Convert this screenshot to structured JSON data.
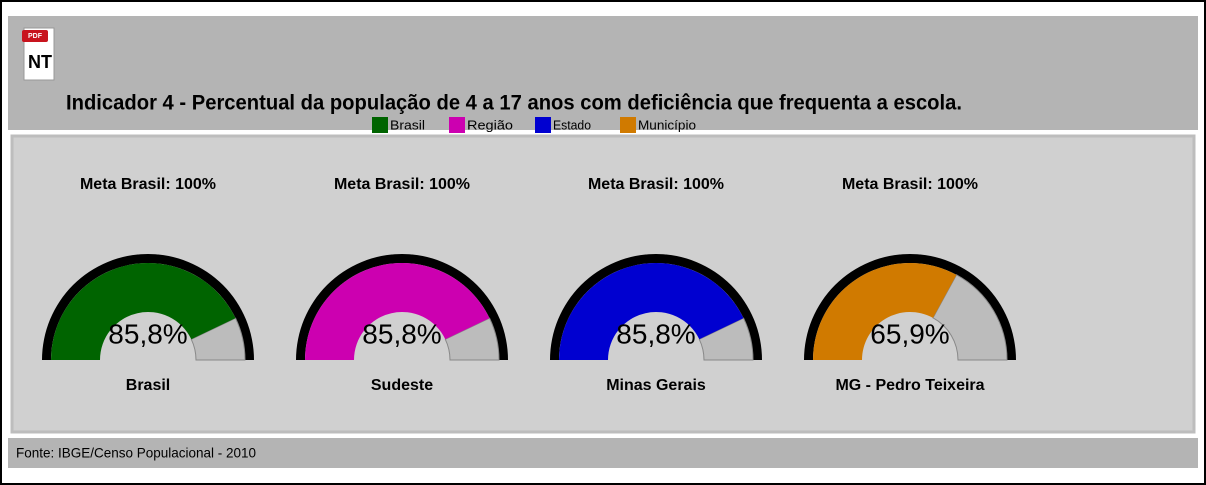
{
  "header": {
    "icon_badge": "PDF",
    "icon_label": "NT",
    "title": "Indicador 4 - Percentual da população de 4 a 17 anos com deficiência que frequenta a escola."
  },
  "chart_data": [
    {
      "type": "gauge",
      "title": "Meta Brasil: 100%",
      "label": "Brasil",
      "ylim": [
        0,
        100
      ],
      "series": [
        {
          "name": "Brasil",
          "color": "#006400",
          "values": [
            85.8
          ],
          "value_labels": [
            "85,8%"
          ]
        }
      ]
    },
    {
      "type": "gauge",
      "title": "Meta Brasil: 100%",
      "label": "Sudeste",
      "ylim": [
        0,
        100
      ],
      "series": [
        {
          "name": "Região",
          "color": "#cc00b0",
          "values": [
            85.8
          ],
          "value_labels": [
            "85,8%"
          ]
        }
      ]
    },
    {
      "type": "gauge",
      "title": "Meta Brasil: 100%",
      "label": "Minas Gerais",
      "ylim": [
        0,
        100
      ],
      "series": [
        {
          "name": "Estado",
          "color": "#0000d0",
          "values": [
            85.8
          ],
          "value_labels": [
            "85,8%"
          ]
        }
      ]
    },
    {
      "type": "gauge",
      "title": "Meta Brasil: 100%",
      "label": "MG - Pedro Teixeira",
      "ylim": [
        0,
        100
      ],
      "series": [
        {
          "name": "Município",
          "color": "#d07a00",
          "values": [
            65.9
          ],
          "value_labels": [
            "65,9%"
          ]
        }
      ]
    }
  ],
  "footer": {
    "source": "Fonte: IBGE/Censo Populacional - 2010"
  }
}
